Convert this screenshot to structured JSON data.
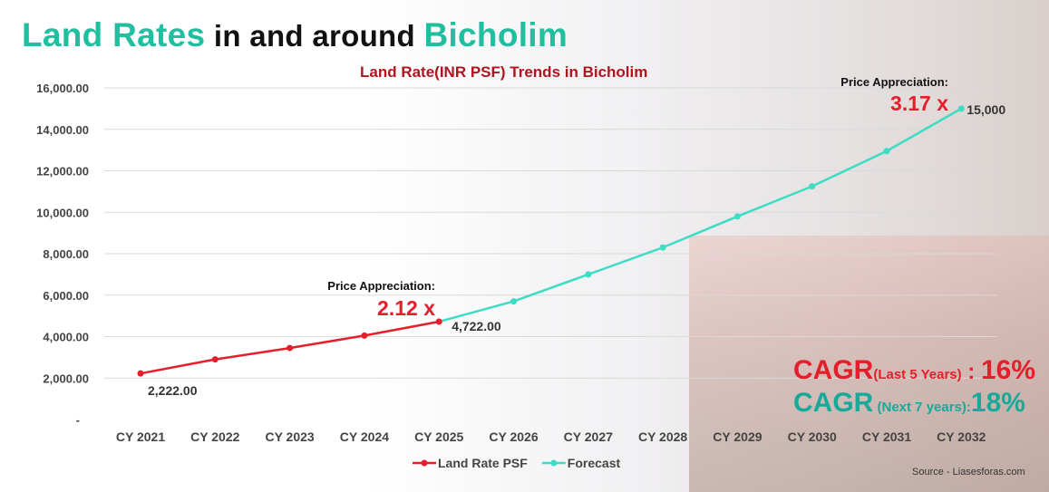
{
  "header": {
    "title_part1": "Land Rates",
    "title_part2": " in and around ",
    "title_part3": "Bicholim"
  },
  "chart_data": {
    "type": "line",
    "title": "Land Rate(INR PSF) Trends in Bicholim",
    "xlabel": "",
    "ylabel": "",
    "ylim": [
      0,
      16000
    ],
    "yticks": [
      "-",
      "2,000.00",
      "4,000.00",
      "6,000.00",
      "8,000.00",
      "10,000.00",
      "12,000.00",
      "14,000.00",
      "16,000.00"
    ],
    "ytick_values": [
      0,
      2000,
      4000,
      6000,
      8000,
      10000,
      12000,
      14000,
      16000
    ],
    "grid": true,
    "categories": [
      "CY 2021",
      "CY 2022",
      "CY 2023",
      "CY 2024",
      "CY 2025",
      "CY 2026",
      "CY 2027",
      "CY 2028",
      "CY 2029",
      "CY 2030",
      "CY 2031",
      "CY 2032"
    ],
    "series": [
      {
        "name": "Land Rate PSF",
        "color": "#e41e2b",
        "values": [
          2222,
          2900,
          3450,
          4050,
          4722,
          null,
          null,
          null,
          null,
          null,
          null,
          null
        ]
      },
      {
        "name": "Forecast",
        "color": "#3ddcc4",
        "values": [
          null,
          null,
          null,
          null,
          4722,
          5700,
          7000,
          8300,
          9800,
          11250,
          12950,
          15000
        ]
      }
    ],
    "data_labels": [
      {
        "text": "2,222.00",
        "index": 0,
        "value": 2222
      },
      {
        "text": "4,722.00",
        "index": 4,
        "value": 4722
      },
      {
        "text": "15,000",
        "index": 11,
        "value": 15000
      }
    ],
    "annotations": [
      {
        "label": "Price Appreciation:",
        "value": "2.12 x"
      },
      {
        "label": "Price Appreciation:",
        "value": "3.17 x"
      }
    ],
    "legend_position": "bottom"
  },
  "cagr": {
    "past_main": "CAGR",
    "past_period": "(Last 5 Years)",
    "past_sep": " : ",
    "past_value": "16%",
    "next_main": "CAGR",
    "next_period": " (Next 7 years):",
    "next_value": "18%"
  },
  "source": "Source - Liasesforas.com"
}
